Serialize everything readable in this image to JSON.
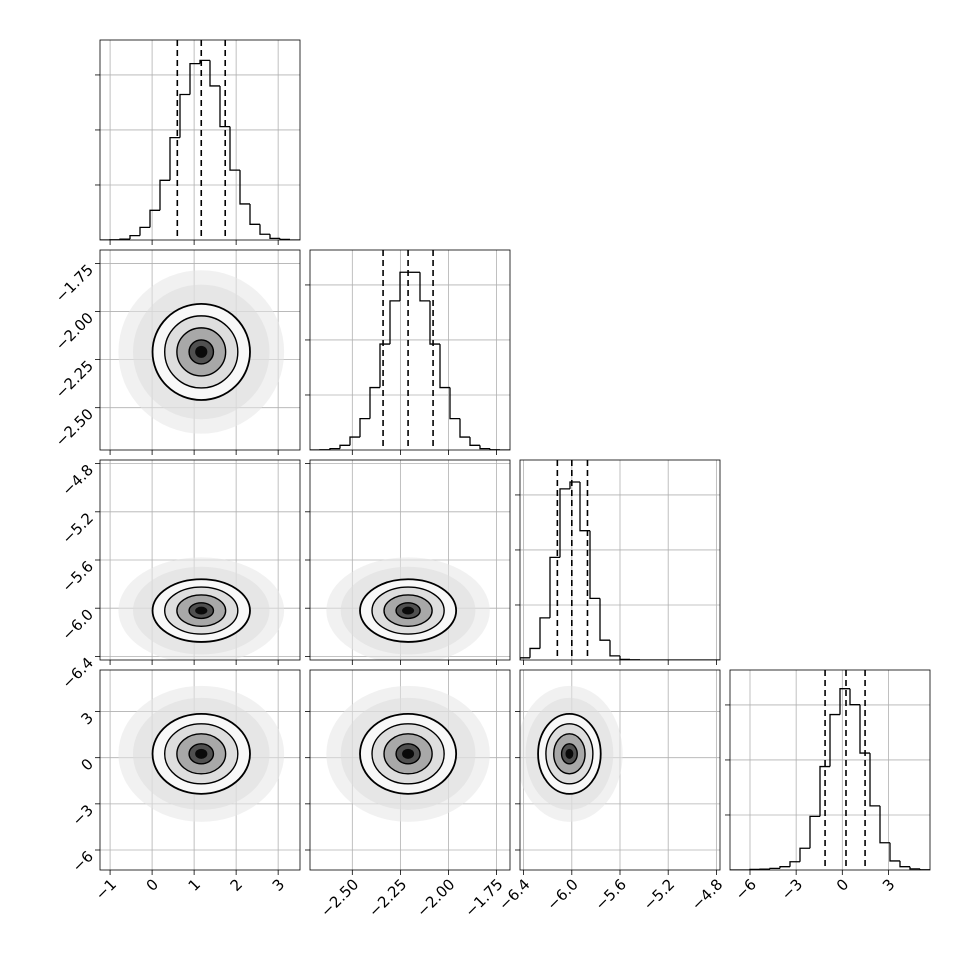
{
  "chart_data": [
    {
      "type": "histogram",
      "xlim": [
        -1.24,
        3.52
      ],
      "xticks": [
        -1,
        0,
        1,
        2,
        3
      ],
      "show_xticklabels": false,
      "ylim": [
        0,
        727
      ],
      "yticks": [
        200,
        400,
        600
      ],
      "show_yticklabels": false,
      "grid": true,
      "color": "#000000",
      "bins": [
        -1.24,
        -1.002,
        -0.764,
        -0.526,
        -0.288,
        -0.05,
        0.188,
        0.426,
        0.664,
        0.902,
        1.14,
        1.378,
        1.616,
        1.854,
        2.092,
        2.33,
        2.568,
        2.806,
        3.044,
        3.282,
        3.52
      ],
      "values": [
        0,
        1,
        3,
        16,
        46,
        108,
        217,
        372,
        529,
        641,
        653,
        560,
        412,
        254,
        131,
        57,
        21,
        6,
        2,
        0
      ],
      "quantiles": [
        0.6,
        1.17,
        1.74
      ]
    },
    {
      "type": "contour",
      "xlim": [
        -1.24,
        3.52
      ],
      "xticks": [
        -1,
        0,
        1,
        2,
        3
      ],
      "show_xticklabels": false,
      "ylim": [
        -2.72,
        -1.68
      ],
      "yticks": [
        {
          "value": -2.5,
          "label": "−2.50"
        },
        {
          "value": -2.25,
          "label": "−2.25"
        },
        {
          "value": -2.0,
          "label": "−2.00"
        },
        {
          "value": -1.75,
          "label": "−1.75"
        }
      ],
      "show_yticklabels": true,
      "grid": true,
      "mean": [
        1.17,
        -2.21
      ],
      "std": [
        0.58,
        0.125
      ]
    },
    {
      "type": "histogram",
      "xlim": [
        -2.72,
        -1.68
      ],
      "xticks": [
        -2.5,
        -2.25,
        -2.0,
        -1.75
      ],
      "show_xticklabels": false,
      "ylim": [
        0,
        727
      ],
      "yticks": [
        200,
        400,
        600
      ],
      "show_yticklabels": false,
      "grid": true,
      "color": "#000000",
      "bins": [
        -2.72,
        -2.668,
        -2.616,
        -2.564,
        -2.512,
        -2.46,
        -2.408,
        -2.356,
        -2.304,
        -2.252,
        -2.2,
        -2.148,
        -2.096,
        -2.044,
        -1.992,
        -1.94,
        -1.888,
        -1.836,
        -1.784,
        -1.732,
        -1.68
      ],
      "values": [
        0,
        1,
        5,
        17,
        47,
        114,
        227,
        385,
        542,
        646,
        646,
        542,
        385,
        227,
        114,
        47,
        17,
        5,
        1,
        0
      ],
      "quantiles": [
        -2.34,
        -2.21,
        -2.08
      ]
    },
    {
      "type": "contour",
      "xlim": [
        -1.24,
        3.52
      ],
      "xticks": [
        -1,
        0,
        1,
        2,
        3
      ],
      "show_xticklabels": false,
      "ylim": [
        -6.43,
        -4.77
      ],
      "yticks": [
        {
          "value": -6.4,
          "label": "−6.4"
        },
        {
          "value": -6.0,
          "label": "−6.0"
        },
        {
          "value": -5.6,
          "label": "−5.6"
        },
        {
          "value": -5.2,
          "label": "−5.2"
        },
        {
          "value": -4.8,
          "label": "−4.8"
        }
      ],
      "show_yticklabels": true,
      "grid": true,
      "mean": [
        1.17,
        -6.02
      ],
      "std": [
        0.58,
        0.13
      ]
    },
    {
      "type": "contour",
      "xlim": [
        -2.72,
        -1.68
      ],
      "xticks": [
        -2.5,
        -2.25,
        -2.0,
        -1.75
      ],
      "show_xticklabels": false,
      "ylim": [
        -6.43,
        -4.77
      ],
      "yticks": [
        -6.4,
        -6.0,
        -5.6,
        -5.2,
        -4.8
      ],
      "show_yticklabels": false,
      "grid": true,
      "mean": [
        -2.21,
        -6.02
      ],
      "std": [
        0.125,
        0.13
      ]
    },
    {
      "type": "histogram",
      "xlim": [
        -6.43,
        -4.77
      ],
      "xticks": [
        -6.4,
        -6.0,
        -5.6,
        -5.2,
        -4.8
      ],
      "show_xticklabels": false,
      "ylim": [
        0,
        727
      ],
      "yticks": [
        200,
        400,
        600
      ],
      "show_yticklabels": false,
      "grid": true,
      "color": "#000000",
      "bins": [
        -6.43,
        -6.347,
        -6.264,
        -6.181,
        -6.098,
        -6.015,
        -5.932,
        -5.849,
        -5.766,
        -5.683,
        -5.6,
        -5.517,
        -5.434,
        -5.351,
        -5.268,
        -5.185,
        -5.102,
        -5.019,
        -4.936,
        -4.853,
        -4.77
      ],
      "values": [
        8,
        42,
        153,
        373,
        622,
        647,
        470,
        224,
        72,
        15,
        2,
        1,
        0,
        0,
        0,
        0,
        0,
        0,
        0,
        0
      ],
      "quantiles": [
        -6.12,
        -6.0,
        -5.87
      ]
    },
    {
      "type": "contour",
      "xlim": [
        -1.24,
        3.52
      ],
      "xticks": [
        {
          "value": -1,
          "label": "−1"
        },
        0,
        1,
        2,
        3
      ],
      "show_xticklabels": true,
      "ylim": [
        -7.3,
        5.7
      ],
      "yticks": [
        {
          "value": -6,
          "label": "−6"
        },
        {
          "value": -3,
          "label": "−3"
        },
        0,
        3
      ],
      "show_yticklabels": true,
      "grid": true,
      "mean": [
        1.17,
        0.25
      ],
      "std": [
        0.58,
        1.3
      ]
    },
    {
      "type": "contour",
      "xlim": [
        -2.72,
        -1.68
      ],
      "xticks": [
        {
          "value": -2.5,
          "label": "−2.50"
        },
        {
          "value": -2.25,
          "label": "−2.25"
        },
        {
          "value": -2.0,
          "label": "−2.00"
        },
        {
          "value": -1.75,
          "label": "−1.75"
        }
      ],
      "show_xticklabels": true,
      "ylim": [
        -7.3,
        5.7
      ],
      "yticks": [
        -6,
        -3,
        0,
        3
      ],
      "show_yticklabels": false,
      "grid": true,
      "mean": [
        -2.21,
        0.25
      ],
      "std": [
        0.125,
        1.3
      ]
    },
    {
      "type": "contour",
      "xlim": [
        -6.43,
        -4.77
      ],
      "xticks": [
        {
          "value": -6.4,
          "label": "−6.4"
        },
        {
          "value": -6.0,
          "label": "−6.0"
        },
        {
          "value": -5.6,
          "label": "−5.6"
        },
        {
          "value": -5.2,
          "label": "−5.2"
        },
        {
          "value": -4.8,
          "label": "−4.8"
        }
      ],
      "show_xticklabels": true,
      "ylim": [
        -7.3,
        5.7
      ],
      "yticks": [
        -6,
        -3,
        0,
        3
      ],
      "show_yticklabels": false,
      "grid": true,
      "mean": [
        -6.02,
        0.25
      ],
      "std": [
        0.13,
        1.3
      ]
    },
    {
      "type": "histogram",
      "xlim": [
        -7.3,
        5.7
      ],
      "xticks": [
        {
          "value": -6,
          "label": "−6"
        },
        {
          "value": -3,
          "label": "−3"
        },
        0,
        3
      ],
      "show_xticklabels": true,
      "ylim": [
        0,
        727
      ],
      "yticks": [
        200,
        400,
        600
      ],
      "show_yticklabels": false,
      "grid": true,
      "color": "#000000",
      "bins": [
        -7.3,
        -6.65,
        -6,
        -5.35,
        -4.7,
        -4.05,
        -3.4,
        -2.75,
        -2.1,
        -1.45,
        -0.8,
        -0.15,
        0.5,
        1.15,
        1.8,
        2.45,
        3.1,
        3.75,
        4.4,
        5.05,
        5.7
      ],
      "values": [
        0,
        0,
        2,
        3,
        6,
        12,
        30,
        79,
        195,
        376,
        565,
        659,
        601,
        425,
        233,
        99,
        33,
        12,
        4,
        1
      ],
      "quantiles": [
        -1.12,
        0.24,
        1.48
      ]
    }
  ]
}
